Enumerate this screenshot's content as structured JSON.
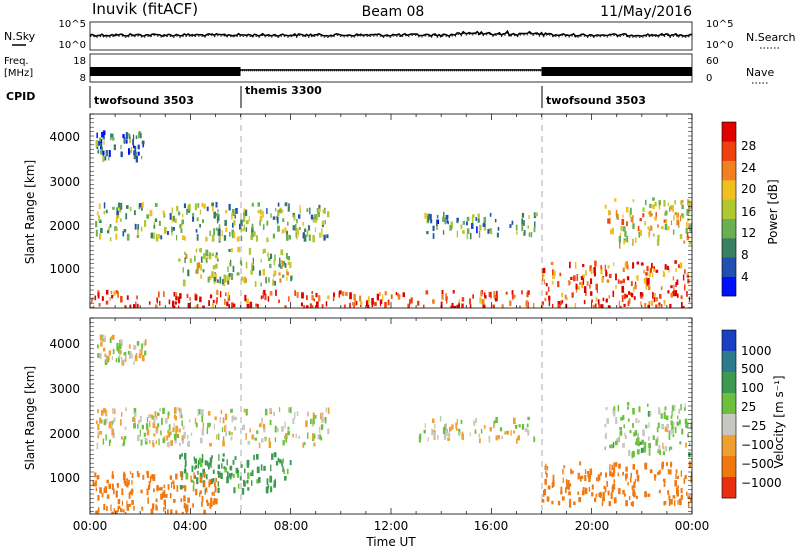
{
  "header": {
    "station": "Inuvik (fitACF)",
    "beam": "Beam 08",
    "date": "11/May/2016"
  },
  "noise_panel": {
    "left_label": "N.Sky",
    "right_label": "N.Search",
    "left_ticks": [
      "10^5",
      "10^0"
    ],
    "right_ticks": [
      "10^5",
      "10^0"
    ]
  },
  "freq_panel": {
    "left_label_line1": "Freq.",
    "left_label_line2": "[MHz]",
    "right_label": "Nave",
    "left_ticks": [
      "18",
      "8"
    ],
    "right_ticks": [
      "60",
      "0"
    ]
  },
  "cpid": {
    "label": "CPID",
    "segments": [
      {
        "name": "twofsound 3503",
        "start_hour": 0,
        "end_hour": 6
      },
      {
        "name": "themis 3300",
        "start_hour": 6,
        "end_hour": 18
      },
      {
        "name": "twofsound 3503",
        "start_hour": 18,
        "end_hour": 24
      }
    ]
  },
  "x_axis": {
    "label": "Time UT",
    "ticks": [
      "00:00",
      "04:00",
      "08:00",
      "12:00",
      "16:00",
      "20:00",
      "00:00"
    ],
    "range_hours": [
      0,
      24
    ]
  },
  "power_panel": {
    "ylabel": "Slant Range [km]",
    "yticks": [
      "1000",
      "2000",
      "3000",
      "4000"
    ],
    "colorbar_label": "Power [dB]",
    "colorbar_ticks": [
      "4",
      "8",
      "12",
      "16",
      "20",
      "24",
      "28"
    ],
    "colors": [
      "#0010ff",
      "#2050b0",
      "#3a8060",
      "#6ab050",
      "#b0c830",
      "#f0c020",
      "#f08020",
      "#f04010",
      "#e00000"
    ]
  },
  "velocity_panel": {
    "ylabel": "Slant Range [km]",
    "yticks": [
      "1000",
      "2000",
      "3000",
      "4000"
    ],
    "colorbar_label": "Velocity [m s⁻¹]",
    "colorbar_ticks": [
      "1000",
      "500",
      "100",
      "25",
      "−25",
      "−100",
      "−500",
      "−1000"
    ],
    "colors": [
      "#1840c0",
      "#2c7a8c",
      "#3c9a50",
      "#6cc040",
      "#c8c8c0",
      "#f0a030",
      "#f07810",
      "#e83010"
    ]
  },
  "chart_data": [
    {
      "type": "heatmap",
      "title": "Power [dB]",
      "xlabel": "Time UT",
      "ylabel": "Slant Range [km]",
      "xlim_hours": [
        0,
        24
      ],
      "ylim_km": [
        180,
        4500
      ],
      "clim_db": [
        0,
        30
      ],
      "regions": [
        {
          "t_start": 0,
          "t_end": 24,
          "r_start": 180,
          "r_end": 550,
          "power_db": 26
        },
        {
          "t_start": 0.2,
          "t_end": 9.5,
          "r_start": 1700,
          "r_end": 2500,
          "power_db": 12
        },
        {
          "t_start": 3.5,
          "t_end": 8.0,
          "r_start": 700,
          "r_end": 1500,
          "power_db": 14
        },
        {
          "t_start": 13.2,
          "t_end": 17.8,
          "r_start": 1800,
          "r_end": 2300,
          "power_db": 10
        },
        {
          "t_start": 18.0,
          "t_end": 24,
          "r_start": 600,
          "r_end": 1200,
          "power_db": 24
        },
        {
          "t_start": 20.5,
          "t_end": 24,
          "r_start": 1600,
          "r_end": 2600,
          "power_db": 18
        },
        {
          "t_start": 0.2,
          "t_end": 2.2,
          "r_start": 3500,
          "r_end": 4100,
          "power_db": 8
        }
      ]
    },
    {
      "type": "heatmap",
      "title": "Velocity [m s⁻¹]",
      "xlabel": "Time UT",
      "ylabel": "Slant Range [km]",
      "xlim_hours": [
        0,
        24
      ],
      "ylim_km": [
        180,
        4500
      ],
      "regions": [
        {
          "t_start": 0.2,
          "t_end": 9.5,
          "r_start": 1700,
          "r_end": 2500,
          "velocity_ms": 0
        },
        {
          "t_start": 13.0,
          "t_end": 17.8,
          "r_start": 1800,
          "r_end": 2300,
          "velocity_ms": 0
        },
        {
          "t_start": 3.5,
          "t_end": 8.0,
          "r_start": 700,
          "r_end": 1500,
          "velocity_ms": 150
        },
        {
          "t_start": 0,
          "t_end": 5,
          "r_start": 180,
          "r_end": 1100,
          "velocity_ms": -200
        },
        {
          "t_start": 18.0,
          "t_end": 24,
          "r_start": 400,
          "r_end": 1300,
          "velocity_ms": -300
        },
        {
          "t_start": 20.5,
          "t_end": 24,
          "r_start": 1500,
          "r_end": 2600,
          "velocity_ms": 40
        },
        {
          "t_start": 0.2,
          "t_end": 2.2,
          "r_start": 3500,
          "r_end": 4100,
          "velocity_ms": 0
        }
      ]
    }
  ]
}
